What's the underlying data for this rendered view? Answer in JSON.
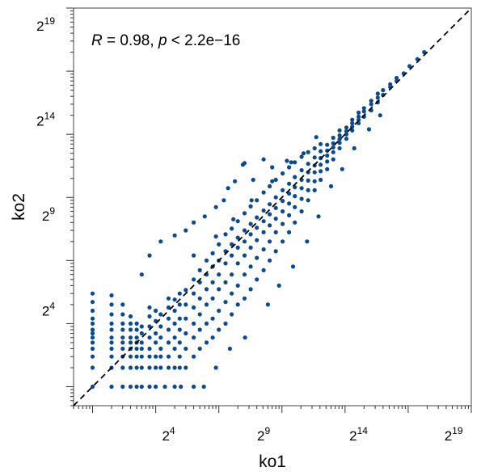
{
  "chart_data": {
    "type": "scatter",
    "title": "",
    "xlabel": "ko1",
    "ylabel": "ko2",
    "scale": "log2",
    "xlim": [
      0.5,
      1000000
    ],
    "ylim": [
      0.5,
      1000000
    ],
    "x_ticks": [
      {
        "base": "2",
        "exp": "4",
        "value": 16
      },
      {
        "base": "2",
        "exp": "9",
        "value": 512
      },
      {
        "base": "2",
        "exp": "14",
        "value": 16384
      },
      {
        "base": "2",
        "exp": "19",
        "value": 524288
      }
    ],
    "y_ticks": [
      {
        "base": "2",
        "exp": "4",
        "value": 16
      },
      {
        "base": "2",
        "exp": "9",
        "value": 512
      },
      {
        "base": "2",
        "exp": "14",
        "value": 16384
      },
      {
        "base": "2",
        "exp": "19",
        "value": 524288
      }
    ],
    "annotation": {
      "r_label": "R",
      "r_text": " = 0.98, ",
      "p_label": "p",
      "p_text": " < 2.2e−16"
    },
    "reference_line": "y = x (dashed)",
    "point_color": "#0b4a8f",
    "grid": false,
    "legend": "none",
    "series": [
      {
        "points": [
          [
            1,
            1
          ],
          [
            2,
            1
          ],
          [
            3,
            1
          ],
          [
            4,
            1
          ],
          [
            5,
            1
          ],
          [
            6,
            1
          ],
          [
            8,
            1
          ],
          [
            10,
            1
          ],
          [
            14,
            1
          ],
          [
            20,
            1
          ],
          [
            25,
            1
          ],
          [
            40,
            1
          ],
          [
            58,
            1
          ],
          [
            1,
            2
          ],
          [
            1,
            3
          ],
          [
            1,
            4
          ],
          [
            1,
            5
          ],
          [
            1,
            6
          ],
          [
            1,
            7
          ],
          [
            1,
            8
          ],
          [
            1,
            10
          ],
          [
            1,
            12
          ],
          [
            1,
            16
          ],
          [
            1,
            22
          ],
          [
            1,
            30
          ],
          [
            2,
            2
          ],
          [
            2,
            3
          ],
          [
            2,
            4
          ],
          [
            2,
            5
          ],
          [
            2,
            6
          ],
          [
            2,
            8
          ],
          [
            2,
            10
          ],
          [
            2,
            14
          ],
          [
            2,
            20
          ],
          [
            2,
            28
          ],
          [
            3,
            2
          ],
          [
            3,
            3
          ],
          [
            3,
            4
          ],
          [
            3,
            5
          ],
          [
            3,
            6
          ],
          [
            3,
            8
          ],
          [
            3,
            10
          ],
          [
            3,
            14
          ],
          [
            3,
            20
          ],
          [
            4,
            2
          ],
          [
            4,
            3
          ],
          [
            4,
            4
          ],
          [
            4,
            5
          ],
          [
            4,
            6
          ],
          [
            4,
            8
          ],
          [
            4,
            10
          ],
          [
            4,
            13
          ],
          [
            5,
            2
          ],
          [
            5,
            3
          ],
          [
            5,
            4
          ],
          [
            5,
            5
          ],
          [
            5,
            6
          ],
          [
            5,
            8
          ],
          [
            5,
            10
          ],
          [
            6,
            2
          ],
          [
            6,
            3
          ],
          [
            6,
            4
          ],
          [
            6,
            5
          ],
          [
            6,
            7
          ],
          [
            6,
            9
          ],
          [
            8,
            2
          ],
          [
            8,
            3
          ],
          [
            8,
            4
          ],
          [
            8,
            6
          ],
          [
            8,
            9
          ],
          [
            8,
            13
          ],
          [
            8,
            18
          ],
          [
            10,
            2
          ],
          [
            10,
            3
          ],
          [
            10,
            5
          ],
          [
            10,
            7
          ],
          [
            10,
            11
          ],
          [
            10,
            16
          ],
          [
            12,
            2
          ],
          [
            12,
            3
          ],
          [
            12,
            4
          ],
          [
            12,
            6
          ],
          [
            12,
            9
          ],
          [
            12,
            14
          ],
          [
            16,
            2
          ],
          [
            16,
            3
          ],
          [
            16,
            5
          ],
          [
            16,
            8
          ],
          [
            16,
            12
          ],
          [
            16,
            18
          ],
          [
            16,
            25
          ],
          [
            20,
            2
          ],
          [
            20,
            4
          ],
          [
            20,
            6
          ],
          [
            20,
            10
          ],
          [
            20,
            16
          ],
          [
            20,
            24
          ],
          [
            24,
            2
          ],
          [
            24,
            3
          ],
          [
            24,
            5
          ],
          [
            24,
            8
          ],
          [
            24,
            12
          ],
          [
            24,
            20
          ],
          [
            24,
            30
          ],
          [
            30,
            2
          ],
          [
            30,
            4
          ],
          [
            30,
            7
          ],
          [
            30,
            12
          ],
          [
            30,
            20
          ],
          [
            30,
            34
          ],
          [
            40,
            3
          ],
          [
            40,
            6
          ],
          [
            40,
            10
          ],
          [
            40,
            18
          ],
          [
            40,
            30
          ],
          [
            40,
            50
          ],
          [
            50,
            4
          ],
          [
            50,
            8
          ],
          [
            50,
            14
          ],
          [
            50,
            25
          ],
          [
            50,
            45
          ],
          [
            50,
            70
          ],
          [
            64,
            5
          ],
          [
            64,
            10
          ],
          [
            64,
            20
          ],
          [
            64,
            35
          ],
          [
            64,
            60
          ],
          [
            64,
            100
          ],
          [
            80,
            6
          ],
          [
            80,
            12
          ],
          [
            80,
            25
          ],
          [
            80,
            45
          ],
          [
            80,
            80
          ],
          [
            80,
            130
          ],
          [
            100,
            8
          ],
          [
            100,
            16
          ],
          [
            100,
            35
          ],
          [
            100,
            60
          ],
          [
            100,
            100
          ],
          [
            100,
            180
          ],
          [
            128,
            10
          ],
          [
            128,
            22
          ],
          [
            128,
            45
          ],
          [
            128,
            90
          ],
          [
            128,
            140
          ],
          [
            128,
            260
          ],
          [
            160,
            14
          ],
          [
            160,
            30
          ],
          [
            160,
            60
          ],
          [
            160,
            120
          ],
          [
            160,
            180
          ],
          [
            160,
            320
          ],
          [
            200,
            20
          ],
          [
            200,
            40
          ],
          [
            200,
            90
          ],
          [
            200,
            160
          ],
          [
            200,
            230
          ],
          [
            200,
            420
          ],
          [
            256,
            25
          ],
          [
            256,
            60
          ],
          [
            256,
            120
          ],
          [
            256,
            200
          ],
          [
            256,
            300
          ],
          [
            256,
            560
          ],
          [
            320,
            35
          ],
          [
            320,
            80
          ],
          [
            320,
            160
          ],
          [
            320,
            260
          ],
          [
            320,
            380
          ],
          [
            320,
            720
          ],
          [
            400,
            50
          ],
          [
            400,
            110
          ],
          [
            400,
            210
          ],
          [
            400,
            330
          ],
          [
            400,
            480
          ],
          [
            400,
            900
          ],
          [
            512,
            70
          ],
          [
            512,
            150
          ],
          [
            512,
            280
          ],
          [
            512,
            420
          ],
          [
            512,
            620
          ],
          [
            512,
            1200
          ],
          [
            640,
            100
          ],
          [
            640,
            200
          ],
          [
            640,
            360
          ],
          [
            640,
            540
          ],
          [
            640,
            780
          ],
          [
            640,
            1500
          ],
          [
            800,
            140
          ],
          [
            800,
            280
          ],
          [
            800,
            460
          ],
          [
            800,
            680
          ],
          [
            800,
            1000
          ],
          [
            800,
            1900
          ],
          [
            1024,
            200
          ],
          [
            1024,
            380
          ],
          [
            1024,
            600
          ],
          [
            1024,
            880
          ],
          [
            1024,
            1300
          ],
          [
            1024,
            2400
          ],
          [
            1300,
            280
          ],
          [
            1300,
            520
          ],
          [
            1300,
            800
          ],
          [
            1300,
            1150
          ],
          [
            1300,
            1650
          ],
          [
            1300,
            3000
          ],
          [
            1600,
            400
          ],
          [
            1600,
            700
          ],
          [
            1600,
            1050
          ],
          [
            1600,
            1450
          ],
          [
            1600,
            2100
          ],
          [
            1600,
            3600
          ],
          [
            2048,
            600
          ],
          [
            2048,
            950
          ],
          [
            2048,
            1400
          ],
          [
            2048,
            1900
          ],
          [
            2048,
            2700
          ],
          [
            2048,
            4400
          ],
          [
            2600,
            900
          ],
          [
            2600,
            1300
          ],
          [
            2600,
            1850
          ],
          [
            2600,
            2500
          ],
          [
            2600,
            3400
          ],
          [
            2600,
            5200
          ],
          [
            3300,
            1300
          ],
          [
            3300,
            1800
          ],
          [
            3300,
            2500
          ],
          [
            3300,
            3200
          ],
          [
            3300,
            4300
          ],
          [
            3300,
            6000
          ],
          [
            4096,
            1900
          ],
          [
            4096,
            2600
          ],
          [
            4096,
            3300
          ],
          [
            4096,
            4200
          ],
          [
            4096,
            5400
          ],
          [
            4096,
            7000
          ],
          [
            5200,
            2800
          ],
          [
            5200,
            3700
          ],
          [
            5200,
            4600
          ],
          [
            5200,
            5500
          ],
          [
            5200,
            6800
          ],
          [
            6500,
            4000
          ],
          [
            6500,
            5200
          ],
          [
            6500,
            6200
          ],
          [
            6500,
            7200
          ],
          [
            6500,
            8800
          ],
          [
            8192,
            6000
          ],
          [
            8192,
            7300
          ],
          [
            8192,
            8400
          ],
          [
            8192,
            9600
          ],
          [
            8192,
            11500
          ],
          [
            10500,
            8500
          ],
          [
            10500,
            10000
          ],
          [
            10500,
            11200
          ],
          [
            10500,
            12800
          ],
          [
            13000,
            11500
          ],
          [
            13000,
            13200
          ],
          [
            13000,
            15000
          ],
          [
            13000,
            17000
          ],
          [
            16384,
            15000
          ],
          [
            16384,
            17000
          ],
          [
            16384,
            19000
          ],
          [
            16384,
            22000
          ],
          [
            20000,
            19000
          ],
          [
            20000,
            23000
          ],
          [
            20000,
            26000
          ],
          [
            26000,
            24000
          ],
          [
            26000,
            30000
          ],
          [
            26000,
            34000
          ],
          [
            33000,
            32000
          ],
          [
            33000,
            38000
          ],
          [
            33000,
            44000
          ],
          [
            40000,
            42000
          ],
          [
            40000,
            50000
          ],
          [
            52000,
            56000
          ],
          [
            52000,
            62000
          ],
          [
            65536,
            70000
          ],
          [
            65536,
            78000
          ],
          [
            85000,
            92000
          ],
          [
            105000,
            120000
          ],
          [
            140000,
            155000
          ],
          [
            180000,
            200000
          ],
          [
            256,
            3500
          ],
          [
            240,
            3300
          ],
          [
            512,
            4000
          ],
          [
            700,
            3000
          ],
          [
            180,
            1800
          ],
          [
            140,
            1400
          ],
          [
            120,
            900
          ],
          [
            90,
            700
          ],
          [
            60,
            500
          ],
          [
            40,
            400
          ],
          [
            30,
            300
          ],
          [
            20,
            250
          ],
          [
            12,
            200
          ],
          [
            8,
            120
          ],
          [
            6,
            60
          ],
          [
            350,
            1900
          ],
          [
            1200,
            3800
          ],
          [
            2200,
            5000
          ],
          [
            3500,
            9000
          ],
          [
            90,
            2
          ],
          [
            150,
            4
          ],
          [
            260,
            6
          ],
          [
            600,
            20
          ],
          [
            900,
            40
          ],
          [
            1500,
            80
          ],
          [
            2500,
            200
          ],
          [
            3800,
            500
          ],
          [
            6000,
            1500
          ],
          [
            9000,
            2800
          ],
          [
            14000,
            6000
          ],
          [
            24000,
            12000
          ],
          [
            36000,
            20000
          ],
          [
            40,
            120
          ],
          [
            90,
            240
          ],
          [
            170,
            450
          ],
          [
            330,
            900
          ],
          [
            700,
            1800
          ],
          [
            1400,
            3600
          ]
        ]
      }
    ]
  }
}
